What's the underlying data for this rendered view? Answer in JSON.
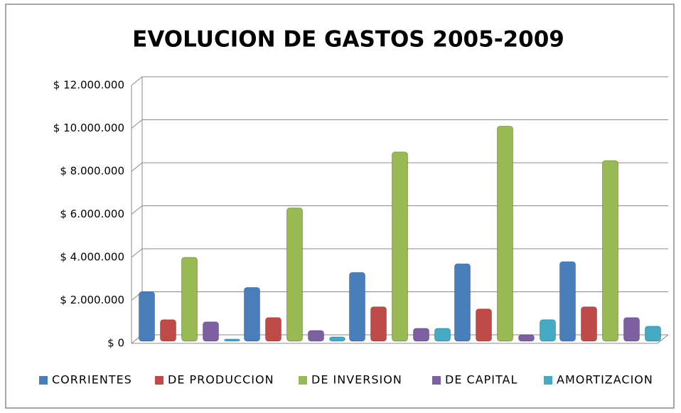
{
  "chart_data": {
    "type": "bar",
    "title": "EVOLUCION DE GASTOS 2005-2009",
    "categories": [
      null,
      null,
      null,
      null,
      null
    ],
    "series": [
      {
        "name": "CORRIENTES",
        "color": "#4a7ebb",
        "values": [
          2300000,
          2500000,
          3200000,
          3600000,
          3700000
        ]
      },
      {
        "name": "DE PRODUCCION",
        "color": "#be4b48",
        "values": [
          1000000,
          1100000,
          1600000,
          1500000,
          1600000
        ]
      },
      {
        "name": "DE INVERSION",
        "color": "#98b954",
        "values": [
          3900000,
          6200000,
          8800000,
          10000000,
          8400000
        ]
      },
      {
        "name": "DE CAPITAL",
        "color": "#7d60a0",
        "values": [
          900000,
          500000,
          600000,
          300000,
          1100000
        ]
      },
      {
        "name": "AMORTIZACION",
        "color": "#46aac5",
        "values": [
          100000,
          200000,
          600000,
          1000000,
          700000
        ]
      }
    ],
    "ylim": [
      0,
      12000000
    ],
    "yticks": [
      {
        "value": 0,
        "label": "$ 0"
      },
      {
        "value": 2000000,
        "label": "$ 2.000.000"
      },
      {
        "value": 4000000,
        "label": "$ 4.000.000"
      },
      {
        "value": 6000000,
        "label": "$ 6.000.000"
      },
      {
        "value": 8000000,
        "label": "$ 8.000.000"
      },
      {
        "value": 10000000,
        "label": "$ 10.000.000"
      },
      {
        "value": 12000000,
        "label": "$ 12.000.000"
      }
    ],
    "grid": true,
    "legend": "bottom"
  }
}
